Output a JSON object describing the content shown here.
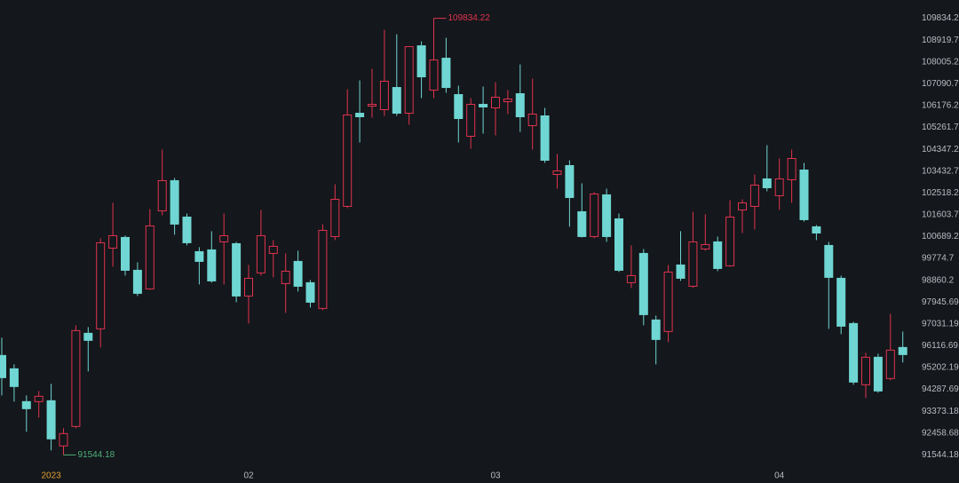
{
  "chart_data": {
    "type": "candlestick",
    "categories": [
      null,
      null,
      null,
      null,
      "2023",
      null,
      null,
      null,
      null,
      null,
      null,
      null,
      null,
      null,
      null,
      null,
      null,
      null,
      null,
      null,
      "02",
      null,
      null,
      null,
      null,
      null,
      null,
      null,
      null,
      null,
      null,
      null,
      null,
      null,
      null,
      null,
      null,
      null,
      null,
      null,
      "03",
      null,
      null,
      null,
      null,
      null,
      null,
      null,
      null,
      null,
      null,
      null,
      null,
      null,
      null,
      null,
      null,
      null,
      null,
      null,
      null,
      null,
      null,
      "04",
      null,
      null,
      null,
      null,
      null,
      null,
      null,
      null,
      null,
      null
    ],
    "open": [
      95710,
      95152,
      93777,
      93777,
      93814,
      91919,
      92736,
      96639,
      96825,
      100207,
      100654,
      99278,
      98497,
      101769,
      103033,
      101508,
      100059,
      100133,
      100468,
      100393,
      98200,
      99167,
      99985,
      98721,
      99650,
      98758,
      97680,
      100691,
      101955,
      105857,
      106155,
      106006,
      106935,
      105857,
      108682,
      106824,
      108162,
      106638,
      104891,
      106229,
      106081,
      106341,
      106675,
      105337,
      105746,
      103293,
      103664,
      101731,
      100691,
      102438,
      101434,
      98758,
      99985,
      97197,
      96714,
      99501,
      98609,
      100170,
      100468,
      99464,
      101806,
      101955,
      103107,
      102401,
      103070,
      103478,
      101100,
      100319,
      98943,
      97048,
      94483,
      95635,
      94744,
      96045
    ],
    "high": [
      96453,
      95338,
      94037,
      94223,
      94521,
      92662,
      96974,
      96899,
      100616,
      102103,
      100728,
      99613,
      101843,
      104333,
      103144,
      101657,
      100245,
      100914,
      101657,
      100468,
      99501,
      101806,
      100542,
      99985,
      100096,
      98869,
      101211,
      102884,
      106861,
      107233,
      107716,
      109351,
      109165,
      108645,
      108868,
      109834.22,
      109017,
      107010,
      106489,
      106973,
      107158,
      106824,
      107902,
      107307,
      106081,
      104147,
      103887,
      102921,
      102549,
      102698,
      101657,
      100319,
      100170,
      97383,
      99501,
      100914,
      101731,
      101620,
      100691,
      102215,
      102252,
      103293,
      104519,
      103961,
      104333,
      103776,
      101174,
      100468,
      99055,
      97122,
      95822,
      95784,
      97457,
      96714
    ],
    "low": [
      94037,
      93777,
      92513,
      93108,
      91733,
      91544.18,
      92662,
      95041,
      96045,
      99427,
      99055,
      98200,
      98460,
      101583,
      100765,
      100319,
      98684,
      98758,
      98684,
      97940,
      97048,
      99055,
      98981,
      97494,
      98386,
      97717,
      97606,
      100542,
      101880,
      104631,
      105672,
      105746,
      105746,
      105374,
      106489,
      106489,
      106712,
      104631,
      104371,
      105002,
      104928,
      105820,
      105077,
      104333,
      103777,
      102697,
      101100,
      100654,
      100616,
      100468,
      99204,
      98535,
      96974,
      95338,
      96268,
      98832,
      98535,
      100096,
      99241,
      99427,
      100839,
      100988,
      102587,
      101806,
      102103,
      101323,
      100542,
      96825,
      96602,
      94483,
      93926,
      94149,
      94669,
      95413
    ],
    "close": [
      94781,
      94409,
      93480,
      94000,
      92216,
      92439,
      96751,
      96342,
      100431,
      100728,
      99278,
      98312,
      101137,
      103033,
      101211,
      100431,
      99650,
      98832,
      100728,
      98200,
      98943,
      100728,
      100282,
      99241,
      98609,
      97940,
      100951,
      102252,
      105783,
      105709,
      106229,
      107196,
      105857,
      108645,
      107381,
      108088,
      106935,
      105634,
      106229,
      106118,
      106526,
      106452,
      105709,
      105820,
      103887,
      103441,
      102326,
      100691,
      102475,
      100691,
      99278,
      99055,
      97420,
      96379,
      99204,
      98943,
      100468,
      100356,
      99353,
      101508,
      102103,
      102846,
      102735,
      103107,
      103961,
      101397,
      100839,
      98981,
      96936,
      94595,
      95635,
      94223,
      95933,
      95747
    ],
    "up_color": "#e0334f",
    "down_color": "#6fd6d3",
    "high_label_color": "#e0334f",
    "low_label_color": "#4fb07a",
    "year_label_color": "#e0a030",
    "ylim": [
      91000,
      110600
    ],
    "yticks": [
      109834.2,
      108919.7,
      108005.2,
      107090.7,
      106176.2,
      105261.7,
      104347.2,
      103432.7,
      102518.2,
      101603.7,
      100689.2,
      99774.7,
      98860.2,
      97945.69,
      97031.19,
      96116.69,
      95202.19,
      94287.69,
      93373.18,
      92458.68,
      91544.18
    ]
  }
}
